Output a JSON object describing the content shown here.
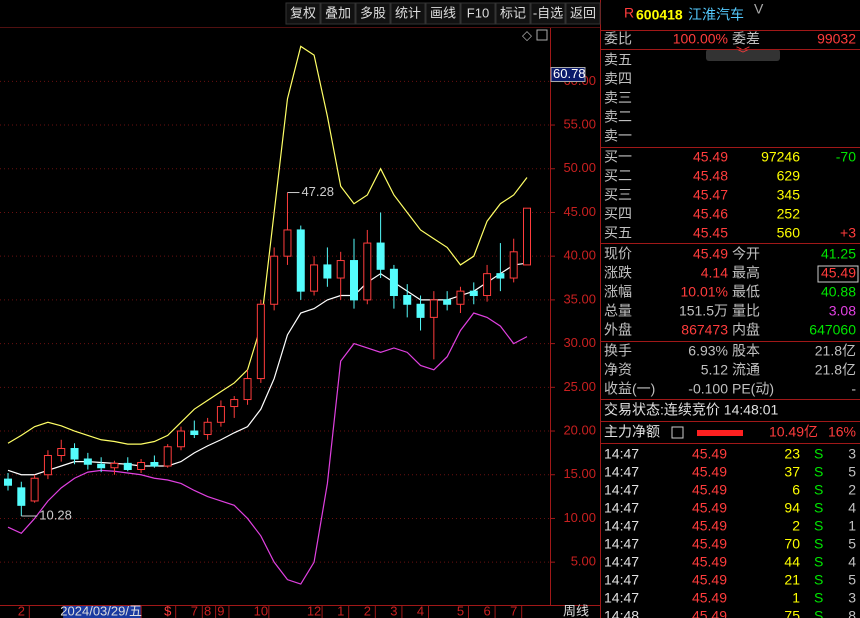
{
  "toolbar": [
    "复权",
    "叠加",
    "多股",
    "统计",
    "画线",
    "F10",
    "标记",
    "-自选",
    "返回"
  ],
  "chart_data": {
    "type": "candlestick",
    "categories": [
      null,
      "2",
      null,
      null,
      null,
      null,
      null,
      "2024/03/29/五",
      null,
      null,
      null,
      null,
      "$",
      null,
      "7",
      "8",
      "9",
      null,
      null,
      "10",
      null,
      null,
      null,
      "12",
      null,
      "1",
      null,
      "2",
      null,
      "3",
      null,
      "4",
      null,
      null,
      "5",
      null,
      "6",
      null,
      "7",
      null
    ],
    "open": [
      14.5,
      13.5,
      12,
      15,
      17.2,
      18,
      16.8,
      16.2,
      15.8,
      16.3,
      15.6,
      16.4,
      16,
      18.2,
      20,
      19.6,
      21,
      22.8,
      23.6,
      26,
      34.5,
      40,
      43,
      36,
      39,
      37.5,
      39.5,
      35,
      41.5,
      38.5,
      35.5,
      34.5,
      33,
      35,
      34.5,
      36,
      35.5,
      38,
      37.5,
      39
    ],
    "high": [
      15.2,
      14.2,
      15,
      17.8,
      19,
      18.6,
      17.5,
      17,
      16.6,
      17,
      16.8,
      17.2,
      18.5,
      20.5,
      21.2,
      21.5,
      23.5,
      24,
      27,
      35,
      41,
      47.28,
      43.5,
      40,
      41,
      40.5,
      42,
      43,
      45,
      39,
      36.8,
      35.5,
      36,
      36,
      36.5,
      37,
      39,
      41.5,
      42,
      45.49
    ],
    "low": [
      13.2,
      10.28,
      11.8,
      14.5,
      16.5,
      16.2,
      15.6,
      15.3,
      15,
      15.4,
      15.2,
      15.8,
      15.8,
      17.8,
      19.2,
      19,
      20.5,
      21.5,
      23,
      25.5,
      33.8,
      39,
      35,
      35.5,
      36.5,
      35,
      34,
      34.5,
      37.5,
      34,
      33,
      31.5,
      28.2,
      33.8,
      33.5,
      34.5,
      34.8,
      36,
      37,
      39
    ],
    "close": [
      13.8,
      11.5,
      14.6,
      17.2,
      18,
      16.8,
      16.2,
      15.8,
      16.3,
      15.6,
      16.4,
      16,
      18.2,
      20,
      19.6,
      21,
      22.8,
      23.6,
      26,
      34.5,
      40,
      43,
      36,
      39,
      37.5,
      39.5,
      35,
      41.5,
      38.5,
      35.5,
      34.5,
      33,
      35,
      34.5,
      36,
      35.5,
      38,
      37.5,
      40.5,
      45.49
    ],
    "lines": [
      {
        "color": "#ffff66",
        "values": [
          18.6,
          19.5,
          20.5,
          21,
          20.6,
          20,
          19.5,
          19,
          18.8,
          18.5,
          18.5,
          18.8,
          19.5,
          21,
          22.5,
          23.5,
          24.5,
          25.5,
          27,
          32,
          45,
          58,
          64,
          63,
          56,
          48,
          46,
          47,
          50,
          47,
          45,
          43,
          42,
          41,
          39,
          40,
          44,
          46,
          47,
          49
        ]
      },
      {
        "color": "#ffffff",
        "values": [
          15.5,
          15,
          15,
          15.5,
          16,
          16.5,
          16.5,
          16.4,
          16.3,
          16.2,
          16,
          16,
          16,
          16.5,
          17.5,
          18.3,
          19,
          19.8,
          20.5,
          22.5,
          26,
          31,
          33.5,
          34,
          35,
          35.5,
          35.5,
          37,
          38,
          37,
          36,
          35,
          35,
          35,
          35.5,
          36,
          37,
          38,
          39,
          39.2
        ]
      },
      {
        "color": "#e040e0",
        "values": [
          9,
          8.3,
          10,
          12,
          13.5,
          14.6,
          15.3,
          15.5,
          15.4,
          15.2,
          15,
          14.6,
          14.4,
          14,
          13.2,
          12.5,
          12,
          11.5,
          10,
          8,
          5,
          3,
          2.5,
          5,
          14,
          28,
          30,
          29.5,
          29,
          29.5,
          29,
          27.5,
          27,
          28.5,
          31.5,
          33.5,
          33,
          32,
          30,
          30.8
        ]
      }
    ],
    "up_color": "#ff3c3c",
    "down_color": "#54fcfc",
    "ylim": [
      0.1,
      66.1
    ],
    "yticks": [
      {
        "value": 5,
        "label": "5.00"
      },
      {
        "value": 10,
        "label": "10.00"
      },
      {
        "value": 15,
        "label": "15.00"
      },
      {
        "value": 20,
        "label": "20.00"
      },
      {
        "value": 25,
        "label": "25.00"
      },
      {
        "value": 30,
        "label": "30.00"
      },
      {
        "value": 35,
        "label": "35.00"
      },
      {
        "value": 40,
        "label": "40.00"
      },
      {
        "value": 45,
        "label": "45.00"
      },
      {
        "value": 50,
        "label": "50.00"
      },
      {
        "value": 55,
        "label": "55.00"
      },
      {
        "value": 60,
        "label": "60.00"
      }
    ],
    "grid": true,
    "cursor_value": 60.78,
    "period": "周线"
  },
  "quote": {
    "flag": "R",
    "code": "600418",
    "name": "江淮汽车",
    "suffix": "V",
    "ratio": [
      "委比",
      "100.00%",
      "委差",
      "99032"
    ],
    "sell": [
      "卖五",
      "卖四",
      "卖三",
      "卖二",
      "卖一"
    ],
    "buy": [
      [
        "买一",
        "45.49",
        "97246",
        "-70"
      ],
      [
        "买二",
        "45.48",
        "629"
      ],
      [
        "买三",
        "45.47",
        "345"
      ],
      [
        "买四",
        "45.46",
        "252"
      ],
      [
        "买五",
        "45.45",
        "560",
        "+3"
      ]
    ],
    "stats": [
      [
        "现价",
        "45.49",
        "今开",
        "41.25"
      ],
      [
        "涨跌",
        "4.14",
        "最高",
        "45.49"
      ],
      [
        "涨幅",
        "10.01%",
        "最低",
        "40.88"
      ],
      [
        "总量",
        "151.5万",
        "量比",
        "3.08"
      ],
      [
        "外盘",
        "867473",
        "内盘",
        "647060"
      ]
    ],
    "info": [
      [
        "换手",
        "6.93%",
        "股本",
        "21.8亿"
      ],
      [
        "净资",
        "5.12",
        "流通",
        "21.8亿"
      ],
      [
        "收益(一)",
        "-0.100",
        "PE(动)",
        "-"
      ]
    ],
    "status": "交易状态:连续竞价 14:48:01",
    "main_flow": [
      "主力净额",
      "10.49亿",
      "16%"
    ],
    "ticks": [
      [
        "14:47",
        "45.49",
        "23",
        "S",
        "3"
      ],
      [
        "14:47",
        "45.49",
        "37",
        "S",
        "5"
      ],
      [
        "14:47",
        "45.49",
        "6",
        "S",
        "2"
      ],
      [
        "14:47",
        "45.49",
        "94",
        "S",
        "4"
      ],
      [
        "14:47",
        "45.49",
        "2",
        "S",
        "1"
      ],
      [
        "14:47",
        "45.49",
        "70",
        "S",
        "5"
      ],
      [
        "14:47",
        "45.49",
        "44",
        "S",
        "4"
      ],
      [
        "14:47",
        "45.49",
        "21",
        "S",
        "5"
      ],
      [
        "14:47",
        "45.49",
        "1",
        "S",
        "3"
      ],
      [
        "14:48",
        "45.49",
        "75",
        "S",
        "8"
      ]
    ]
  }
}
